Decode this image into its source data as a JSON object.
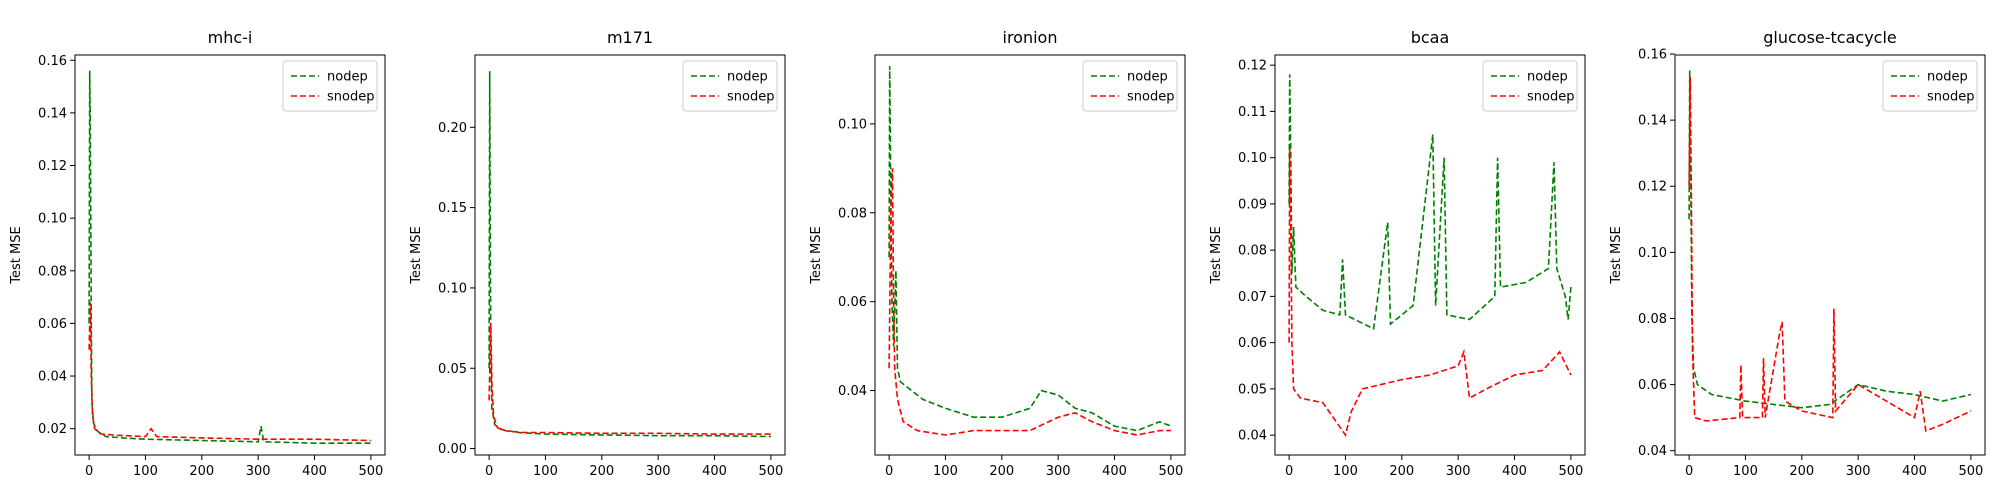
{
  "chart_data": [
    {
      "type": "line",
      "title": "mhc-i",
      "xlabel": "",
      "ylabel": "Test MSE",
      "xlim": [
        -25,
        525
      ],
      "ylim": [
        0.01,
        0.162
      ],
      "xticks": [
        0,
        100,
        200,
        300,
        400,
        500
      ],
      "yticks": [
        0.02,
        0.04,
        0.06,
        0.08,
        0.1,
        0.12,
        0.14,
        0.16
      ],
      "ytick_labels": [
        "0.02",
        "0.04",
        "0.06",
        "0.08",
        "0.10",
        "0.12",
        "0.14",
        "0.16"
      ],
      "legend_position": "top-right",
      "series": [
        {
          "name": "nodep",
          "color": "#008000",
          "points": [
            [
              0,
              0.06
            ],
            [
              1,
              0.156
            ],
            [
              2,
              0.14
            ],
            [
              3,
              0.1
            ],
            [
              4,
              0.06
            ],
            [
              5,
              0.03
            ],
            [
              8,
              0.022
            ],
            [
              15,
              0.019
            ],
            [
              30,
              0.017
            ],
            [
              60,
              0.0165
            ],
            [
              100,
              0.016
            ],
            [
              200,
              0.0155
            ],
            [
              300,
              0.015
            ],
            [
              305,
              0.021
            ],
            [
              310,
              0.015
            ],
            [
              400,
              0.0145
            ],
            [
              500,
              0.0145
            ]
          ]
        },
        {
          "name": "snodep",
          "color": "#ff0000",
          "points": [
            [
              0,
              0.05
            ],
            [
              2,
              0.068
            ],
            [
              4,
              0.04
            ],
            [
              6,
              0.025
            ],
            [
              10,
              0.02
            ],
            [
              20,
              0.018
            ],
            [
              50,
              0.0175
            ],
            [
              100,
              0.017
            ],
            [
              110,
              0.02
            ],
            [
              120,
              0.017
            ],
            [
              200,
              0.0165
            ],
            [
              300,
              0.016
            ],
            [
              400,
              0.016
            ],
            [
              500,
              0.0155
            ]
          ]
        }
      ]
    },
    {
      "type": "line",
      "title": "m171",
      "xlabel": "",
      "ylabel": "Test MSE",
      "xlim": [
        -25,
        525
      ],
      "ylim": [
        -0.004,
        0.245
      ],
      "xticks": [
        0,
        100,
        200,
        300,
        400,
        500
      ],
      "yticks": [
        0.0,
        0.05,
        0.1,
        0.15,
        0.2
      ],
      "ytick_labels": [
        "0.00",
        "0.05",
        "0.10",
        "0.15",
        "0.20"
      ],
      "legend_position": "top-right",
      "series": [
        {
          "name": "nodep",
          "color": "#008000",
          "points": [
            [
              0,
              0.05
            ],
            [
              1,
              0.235
            ],
            [
              2,
              0.15
            ],
            [
              3,
              0.06
            ],
            [
              5,
              0.025
            ],
            [
              10,
              0.015
            ],
            [
              20,
              0.012
            ],
            [
              50,
              0.01
            ],
            [
              100,
              0.009
            ],
            [
              200,
              0.0085
            ],
            [
              300,
              0.008
            ],
            [
              400,
              0.008
            ],
            [
              500,
              0.0075
            ]
          ]
        },
        {
          "name": "snodep",
          "color": "#ff0000",
          "points": [
            [
              0,
              0.03
            ],
            [
              3,
              0.078
            ],
            [
              5,
              0.04
            ],
            [
              8,
              0.02
            ],
            [
              15,
              0.013
            ],
            [
              30,
              0.011
            ],
            [
              60,
              0.01
            ],
            [
              100,
              0.01
            ],
            [
              200,
              0.0095
            ],
            [
              300,
              0.0095
            ],
            [
              400,
              0.009
            ],
            [
              500,
              0.009
            ]
          ]
        }
      ]
    },
    {
      "type": "line",
      "title": "ironion",
      "xlabel": "",
      "ylabel": "Test MSE",
      "xlim": [
        -25,
        525
      ],
      "ylim": [
        0.0255,
        0.1155
      ],
      "xticks": [
        0,
        100,
        200,
        300,
        400,
        500
      ],
      "yticks": [
        0.04,
        0.06,
        0.08,
        0.1
      ],
      "ytick_labels": [
        "0.04",
        "0.06",
        "0.08",
        "0.10"
      ],
      "legend_position": "top-right",
      "series": [
        {
          "name": "nodep",
          "color": "#008000",
          "points": [
            [
              0,
              0.07
            ],
            [
              1,
              0.113
            ],
            [
              3,
              0.085
            ],
            [
              5,
              0.06
            ],
            [
              8,
              0.05
            ],
            [
              12,
              0.067
            ],
            [
              15,
              0.045
            ],
            [
              20,
              0.042
            ],
            [
              40,
              0.04
            ],
            [
              60,
              0.038
            ],
            [
              100,
              0.036
            ],
            [
              150,
              0.034
            ],
            [
              200,
              0.034
            ],
            [
              250,
              0.036
            ],
            [
              270,
              0.04
            ],
            [
              300,
              0.039
            ],
            [
              330,
              0.036
            ],
            [
              360,
              0.035
            ],
            [
              400,
              0.032
            ],
            [
              440,
              0.031
            ],
            [
              480,
              0.033
            ],
            [
              500,
              0.032
            ]
          ]
        },
        {
          "name": "snodep",
          "color": "#ff0000",
          "points": [
            [
              0,
              0.045
            ],
            [
              3,
              0.08
            ],
            [
              6,
              0.09
            ],
            [
              8,
              0.06
            ],
            [
              10,
              0.045
            ],
            [
              15,
              0.038
            ],
            [
              25,
              0.033
            ],
            [
              50,
              0.031
            ],
            [
              100,
              0.03
            ],
            [
              150,
              0.031
            ],
            [
              200,
              0.031
            ],
            [
              250,
              0.031
            ],
            [
              300,
              0.034
            ],
            [
              330,
              0.035
            ],
            [
              360,
              0.033
            ],
            [
              400,
              0.031
            ],
            [
              440,
              0.03
            ],
            [
              480,
              0.031
            ],
            [
              500,
              0.031
            ]
          ]
        }
      ]
    },
    {
      "type": "line",
      "title": "bcaa",
      "xlabel": "",
      "ylabel": "Test MSE",
      "xlim": [
        -25,
        525
      ],
      "ylim": [
        0.0357,
        0.1222
      ],
      "xticks": [
        0,
        100,
        200,
        300,
        400,
        500
      ],
      "yticks": [
        0.04,
        0.05,
        0.06,
        0.07,
        0.08,
        0.09,
        0.1,
        0.11,
        0.12
      ],
      "ytick_labels": [
        "0.04",
        "0.05",
        "0.06",
        "0.07",
        "0.08",
        "0.09",
        "0.10",
        "0.11",
        "0.12"
      ],
      "legend_position": "top-right",
      "series": [
        {
          "name": "nodep",
          "color": "#008000",
          "points": [
            [
              0,
              0.09
            ],
            [
              1,
              0.118
            ],
            [
              3,
              0.1
            ],
            [
              5,
              0.075
            ],
            [
              8,
              0.085
            ],
            [
              12,
              0.072
            ],
            [
              30,
              0.07
            ],
            [
              60,
              0.067
            ],
            [
              90,
              0.066
            ],
            [
              95,
              0.078
            ],
            [
              100,
              0.066
            ],
            [
              150,
              0.063
            ],
            [
              175,
              0.086
            ],
            [
              180,
              0.064
            ],
            [
              220,
              0.068
            ],
            [
              255,
              0.105
            ],
            [
              260,
              0.068
            ],
            [
              275,
              0.1
            ],
            [
              280,
              0.066
            ],
            [
              320,
              0.065
            ],
            [
              365,
              0.07
            ],
            [
              370,
              0.1
            ],
            [
              375,
              0.072
            ],
            [
              420,
              0.073
            ],
            [
              460,
              0.076
            ],
            [
              470,
              0.099
            ],
            [
              475,
              0.076
            ],
            [
              490,
              0.07
            ],
            [
              495,
              0.065
            ],
            [
              500,
              0.072
            ]
          ]
        },
        {
          "name": "snodep",
          "color": "#ff0000",
          "points": [
            [
              0,
              0.06
            ],
            [
              1,
              0.102
            ],
            [
              3,
              0.085
            ],
            [
              5,
              0.06
            ],
            [
              8,
              0.05
            ],
            [
              20,
              0.048
            ],
            [
              60,
              0.047
            ],
            [
              100,
              0.04
            ],
            [
              110,
              0.045
            ],
            [
              130,
              0.05
            ],
            [
              200,
              0.052
            ],
            [
              250,
              0.053
            ],
            [
              300,
              0.055
            ],
            [
              310,
              0.058
            ],
            [
              320,
              0.048
            ],
            [
              350,
              0.05
            ],
            [
              400,
              0.053
            ],
            [
              450,
              0.054
            ],
            [
              480,
              0.058
            ],
            [
              500,
              0.053
            ]
          ]
        }
      ]
    },
    {
      "type": "line",
      "title": "glucose-tcacycle",
      "xlabel": "",
      "ylabel": "Test MSE",
      "xlim": [
        -25,
        525
      ],
      "ylim": [
        0.0387,
        0.1597
      ],
      "xticks": [
        0,
        100,
        200,
        300,
        400,
        500
      ],
      "yticks": [
        0.04,
        0.06,
        0.08,
        0.1,
        0.12,
        0.14,
        0.16
      ],
      "ytick_labels": [
        "0.04",
        "0.06",
        "0.08",
        "0.10",
        "0.12",
        "0.14",
        "0.16"
      ],
      "legend_position": "top-right",
      "series": [
        {
          "name": "nodep",
          "color": "#008000",
          "points": [
            [
              0,
              0.11
            ],
            [
              1,
              0.155
            ],
            [
              3,
              0.12
            ],
            [
              5,
              0.08
            ],
            [
              8,
              0.065
            ],
            [
              15,
              0.06
            ],
            [
              40,
              0.057
            ],
            [
              100,
              0.055
            ],
            [
              150,
              0.054
            ],
            [
              200,
              0.053
            ],
            [
              250,
              0.054
            ],
            [
              300,
              0.06
            ],
            [
              350,
              0.058
            ],
            [
              400,
              0.057
            ],
            [
              450,
              0.055
            ],
            [
              500,
              0.057
            ]
          ]
        },
        {
          "name": "snodep",
          "color": "#ff0000",
          "points": [
            [
              0,
              0.12
            ],
            [
              2,
              0.153
            ],
            [
              4,
              0.12
            ],
            [
              6,
              0.07
            ],
            [
              10,
              0.05
            ],
            [
              30,
              0.049
            ],
            [
              90,
              0.05
            ],
            [
              92,
              0.066
            ],
            [
              95,
              0.05
            ],
            [
              130,
              0.05
            ],
            [
              132,
              0.068
            ],
            [
              135,
              0.05
            ],
            [
              160,
              0.075
            ],
            [
              165,
              0.079
            ],
            [
              170,
              0.055
            ],
            [
              200,
              0.052
            ],
            [
              255,
              0.05
            ],
            [
              257,
              0.083
            ],
            [
              260,
              0.052
            ],
            [
              300,
              0.06
            ],
            [
              350,
              0.055
            ],
            [
              400,
              0.05
            ],
            [
              410,
              0.058
            ],
            [
              420,
              0.046
            ],
            [
              450,
              0.048
            ],
            [
              500,
              0.052
            ]
          ]
        }
      ]
    }
  ]
}
